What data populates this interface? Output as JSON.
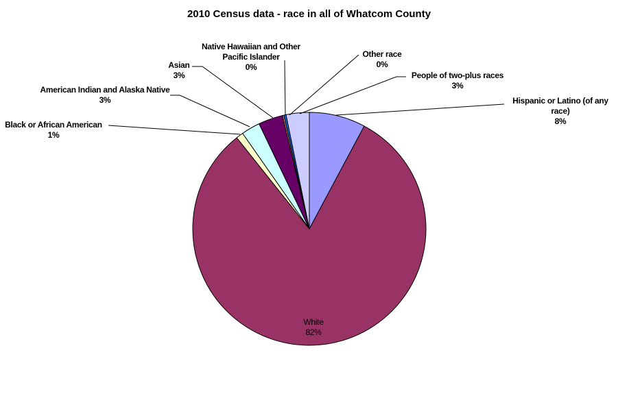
{
  "chart_data": {
    "type": "pie",
    "title": "2010 Census data - race in all of Whatcom County",
    "categories": [
      "Hispanic or Latino (of any race)",
      "White",
      "Black or African American",
      "American Indian and Alaska Native",
      "Asian",
      "Native Hawaiian and Other Pacific Islander",
      "Other race",
      "People of two-plus races"
    ],
    "values": [
      7.8,
      81.5,
      1.0,
      2.6,
      3.4,
      0.2,
      0.3,
      3.2
    ],
    "value_labels": [
      "8%",
      "82%",
      "1%",
      "3%",
      "3%",
      "0%",
      "0%",
      "3%"
    ],
    "colors": [
      "#9999ff",
      "#993366",
      "#ffffcc",
      "#ccffff",
      "#660066",
      "#ff8080",
      "#0066cc",
      "#ccccff"
    ]
  }
}
